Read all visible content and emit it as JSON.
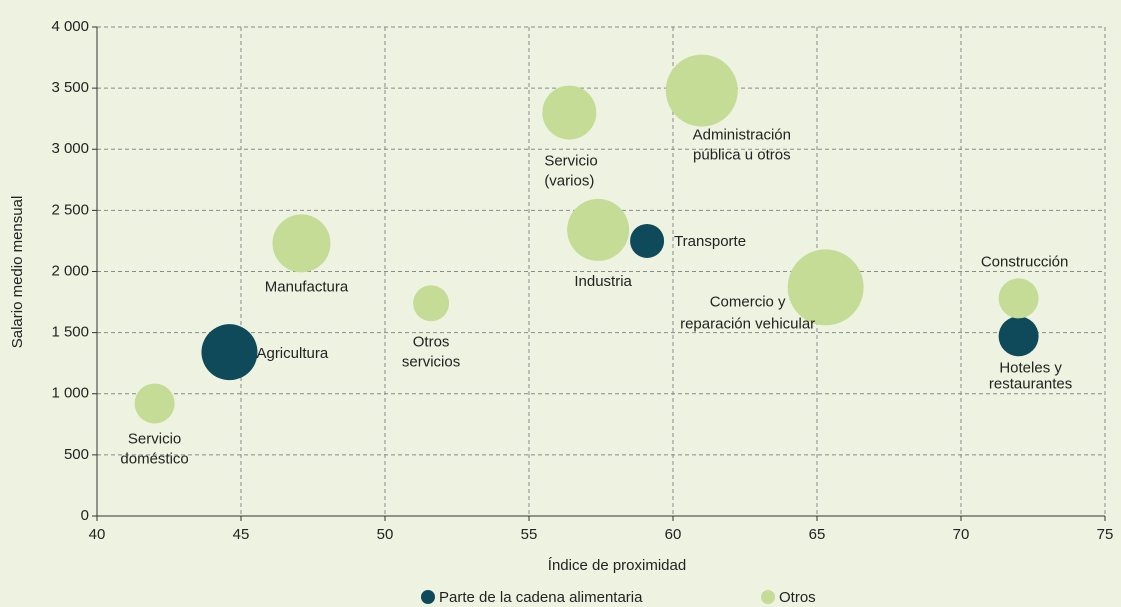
{
  "chart_data": {
    "type": "bubble",
    "xlabel": "Índice de proximidad",
    "ylabel": "Salario medio mensual",
    "xlim": [
      40,
      75
    ],
    "xticks": [
      40,
      45,
      50,
      55,
      60,
      65,
      70,
      75
    ],
    "ylim": [
      0,
      4000
    ],
    "yticks": [
      0,
      500,
      {
        "value": 1000,
        "label": "1 000"
      },
      {
        "value": 1500,
        "label": "1 500"
      },
      {
        "value": 2000,
        "label": "2 000"
      },
      {
        "value": 2500,
        "label": "2 500"
      },
      {
        "value": 3000,
        "label": "3 000"
      },
      {
        "value": 3500,
        "label": "3 500"
      },
      {
        "value": 4000,
        "label": "4 000"
      }
    ],
    "grid": true,
    "legend": "bottom",
    "series": [
      {
        "name": "Parte de la cadena alimentaria",
        "color": "#0e4a5a",
        "x": [
          44.6,
          59.1,
          72.0
        ],
        "values": [
          1340,
          2250,
          1470
        ],
        "sizes": [
          28,
          17,
          20
        ],
        "labels": [
          [
            "Agricultura"
          ],
          [
            "Transporte"
          ],
          [
            "Hoteles y",
            "restaurantes"
          ]
        ]
      },
      {
        "name": "Otros",
        "color": "#c5dc96",
        "x": [
          42.0,
          47.1,
          51.6,
          56.4,
          57.4,
          61.0,
          65.3,
          72.0
        ],
        "values": [
          920,
          2230,
          1740,
          3300,
          2340,
          3480,
          1870,
          1780
        ],
        "sizes": [
          20,
          29,
          18,
          27,
          31,
          36,
          38,
          20
        ],
        "labels": [
          [
            "Servicio",
            "doméstico"
          ],
          [
            "Manufactura"
          ],
          [
            "Otros",
            "servicios"
          ],
          [
            "Servicio",
            "(varios)"
          ],
          [
            "Industria"
          ],
          [
            "Administración",
            "pública u otros"
          ],
          [
            "Comercio y",
            "reparación vehicular"
          ],
          [
            "Construcción"
          ]
        ]
      }
    ]
  }
}
